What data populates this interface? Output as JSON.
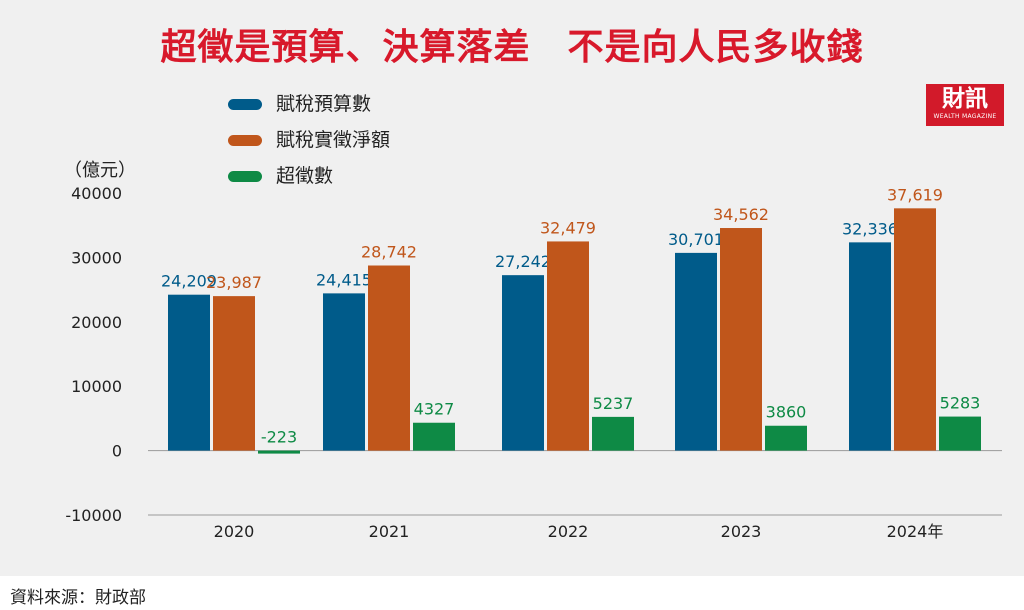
{
  "title": "超徵是預算、決算落差　不是向人民多收錢",
  "logo": {
    "main": "財訊",
    "sub": "WEALTH MAGAZINE"
  },
  "unit": "（億元）",
  "source": "資料來源：財政部",
  "colors": {
    "budget": "#005b8a",
    "actual": "#c0561b",
    "excess": "#0e8a45",
    "title": "#d8192b"
  },
  "chart_data": {
    "type": "bar",
    "title": "超徵是預算、決算落差　不是向人民多收錢",
    "ylabel": "（億元）",
    "xlabel": "",
    "ylim": [
      -10000,
      40000
    ],
    "yticks": [
      -10000,
      0,
      10000,
      20000,
      30000,
      40000
    ],
    "ytick_labels": [
      "-10000",
      "0",
      "10000",
      "20000",
      "30000",
      "40000"
    ],
    "categories": [
      "2020",
      "2021",
      "2022",
      "2023",
      "2024年"
    ],
    "legend_position": "top-left",
    "grid": false,
    "series": [
      {
        "name": "賦稅預算數",
        "values": [
          24209,
          24415,
          27242,
          30701,
          32336
        ],
        "labels": [
          "24,209",
          "24,415",
          "27,242",
          "30,701",
          "32,336"
        ],
        "color": "#005b8a"
      },
      {
        "name": "賦稅實徵淨額",
        "values": [
          23987,
          28742,
          32479,
          34562,
          37619
        ],
        "labels": [
          "23,987",
          "28,742",
          "32,479",
          "34,562",
          "37,619"
        ],
        "color": "#c0561b"
      },
      {
        "name": "超徵數",
        "values": [
          -223,
          4327,
          5237,
          3860,
          5283
        ],
        "labels": [
          "-223",
          "4327",
          "5237",
          "3860",
          "5283"
        ],
        "color": "#0e8a45"
      }
    ]
  }
}
